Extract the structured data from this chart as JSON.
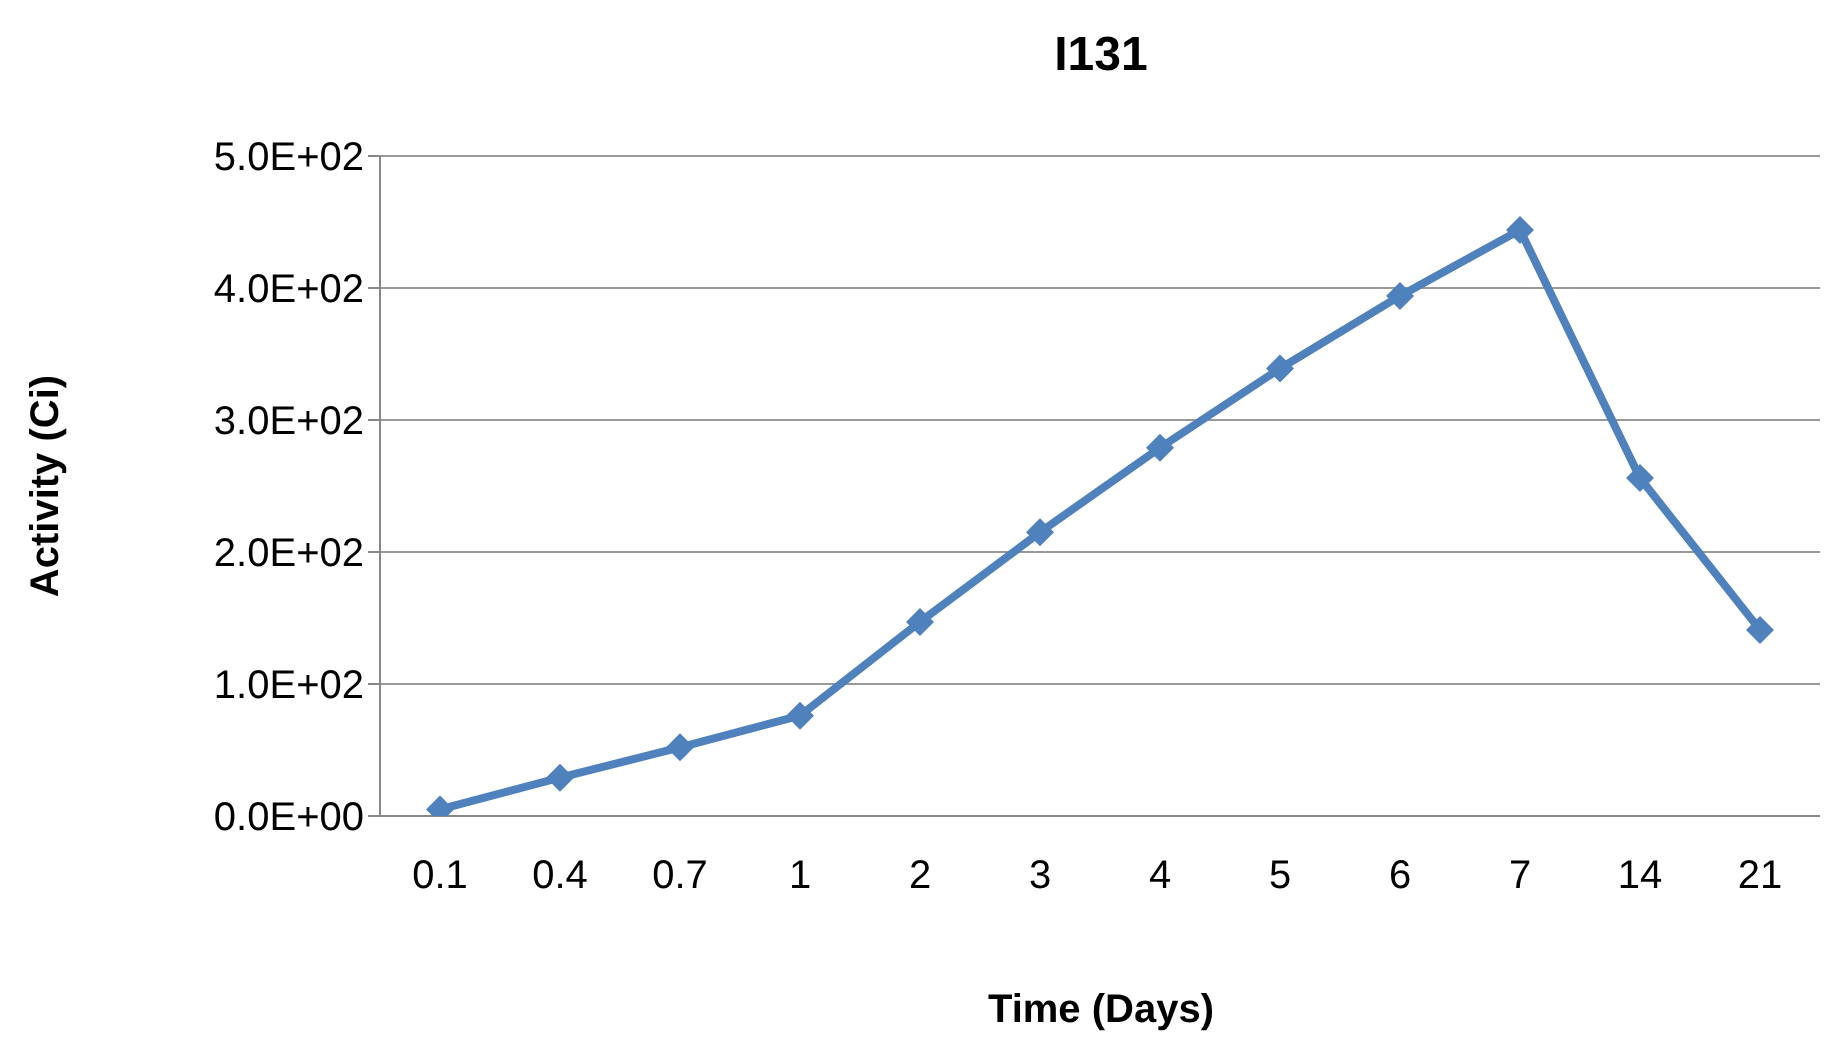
{
  "chart_data": {
    "type": "line",
    "title": "I131",
    "xlabel": "Time (Days)",
    "ylabel": "Activity (Ci)",
    "categories": [
      "0.1",
      "0.4",
      "0.7",
      "1",
      "2",
      "3",
      "4",
      "5",
      "6",
      "7",
      "14",
      "21"
    ],
    "series": [
      {
        "color": "#4f81bd",
        "values": [
          5,
          29,
          52,
          76,
          147,
          215,
          279,
          339,
          394,
          444,
          256,
          141
        ]
      }
    ],
    "ylim": [
      0,
      500
    ],
    "yticks": [
      {
        "value": 0,
        "label": "0.0E+00"
      },
      {
        "value": 100,
        "label": "1.0E+02"
      },
      {
        "value": 200,
        "label": "2.0E+02"
      },
      {
        "value": 300,
        "label": "3.0E+02"
      },
      {
        "value": 400,
        "label": "4.0E+02"
      },
      {
        "value": 500,
        "label": "5.0E+02"
      }
    ],
    "grid": "y",
    "legend": false,
    "marker": "diamond",
    "line_style": "solid"
  }
}
